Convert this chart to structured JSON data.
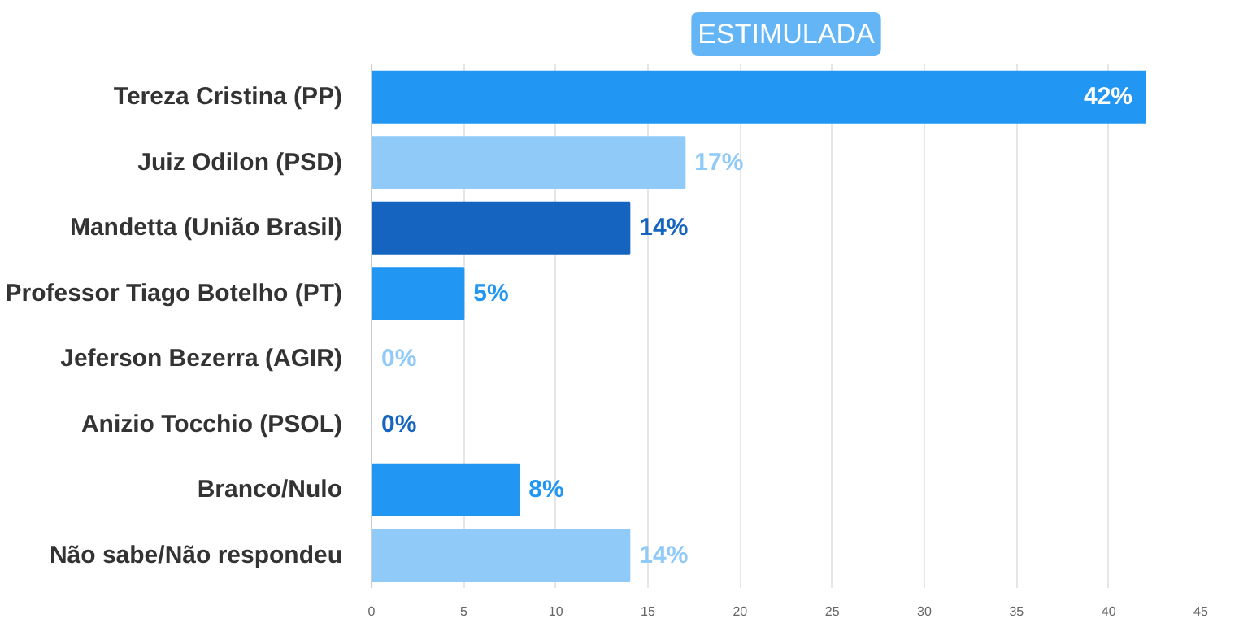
{
  "chart_data": {
    "type": "bar",
    "title": "ESTIMULADA",
    "orientation": "horizontal",
    "categories": [
      "Tereza Cristina (PP)",
      "Juiz Odilon (PSD)",
      "Mandetta (União Brasil)",
      "Professor Tiago Botelho (PT)",
      "Jeferson Bezerra (AGIR)",
      "Anizio Tocchio (PSOL)",
      "Branco/Nulo",
      "Não sabe/Não respondeu"
    ],
    "values": [
      42,
      17,
      14,
      5,
      0,
      0,
      8,
      14
    ],
    "value_labels": [
      "42%",
      "17%",
      "14%",
      "5%",
      "0%",
      "0%",
      "8%",
      "14%"
    ],
    "colors": [
      "#2196f3",
      "#90caf9",
      "#1565c0",
      "#2196f3",
      "#90caf9",
      "#1565c0",
      "#2196f3",
      "#90caf9"
    ],
    "xlim": [
      0,
      45
    ],
    "xticks": [
      0,
      5,
      10,
      15,
      20,
      25,
      30,
      35,
      40,
      45
    ],
    "grid": "x"
  }
}
